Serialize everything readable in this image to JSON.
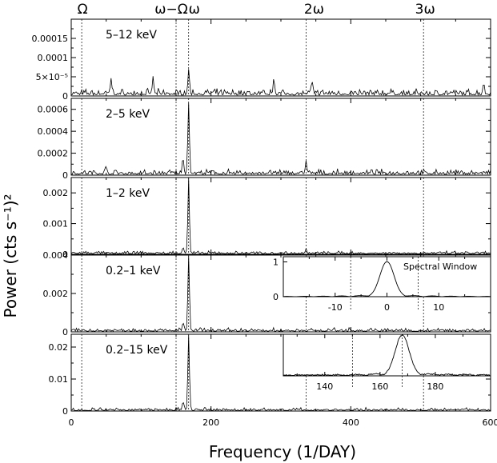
{
  "chart_data": {
    "type": "line",
    "xlabel": "Frequency (1/DAY)",
    "ylabel": "Power (cts s⁻¹)²",
    "xlim": [
      0,
      600
    ],
    "x_ticks": [
      0,
      200,
      400,
      600
    ],
    "harmonic_markers": [
      {
        "label": "Ω",
        "x": 15
      },
      {
        "label": "ω−Ω",
        "x": 150
      },
      {
        "label": "ω",
        "x": 168
      },
      {
        "label": "2ω",
        "x": 336
      },
      {
        "label": "3ω",
        "x": 504
      }
    ],
    "panels": [
      {
        "band": "5–12 keV",
        "ylim": [
          0,
          0.0002
        ],
        "y_ticks": [
          {
            "value": 0,
            "label": "0"
          },
          {
            "value": 5e-05,
            "label": "5×10⁻⁵"
          },
          {
            "value": 0.0001,
            "label": "0.0001"
          },
          {
            "value": 0.00015,
            "label": "0.00015"
          }
        ],
        "peak_frequency": 168,
        "peak_power": 6e-05,
        "noise_level": 7e-06,
        "secondary_peaks": [
          {
            "x": 57,
            "y": 4e-05
          },
          {
            "x": 117,
            "y": 4e-05
          },
          {
            "x": 290,
            "y": 4e-05
          },
          {
            "x": 345,
            "y": 3e-05
          },
          {
            "x": 590,
            "y": 2.5e-05
          }
        ]
      },
      {
        "band": "2–5 keV",
        "ylim": [
          0,
          0.0007
        ],
        "y_ticks": [
          {
            "value": 0,
            "label": "0"
          },
          {
            "value": 0.0002,
            "label": "0.0002"
          },
          {
            "value": 0.0004,
            "label": "0.0004"
          },
          {
            "value": 0.0006,
            "label": "0.0006"
          }
        ],
        "peak_frequency": 168,
        "peak_power": 0.00065,
        "noise_level": 2e-05,
        "secondary_peaks": [
          {
            "x": 336,
            "y": 0.00011
          },
          {
            "x": 160,
            "y": 0.00014
          },
          {
            "x": 50,
            "y": 5e-05
          }
        ]
      },
      {
        "band": "1–2 keV",
        "ylim": [
          0,
          0.0025
        ],
        "y_ticks": [
          {
            "value": 0,
            "label": "0"
          },
          {
            "value": 0.001,
            "label": "0.001"
          },
          {
            "value": 0.002,
            "label": "0.002"
          }
        ],
        "peak_frequency": 168,
        "peak_power": 0.0024,
        "noise_level": 4e-05,
        "secondary_peaks": [
          {
            "x": 336,
            "y": 0.00012
          },
          {
            "x": 160,
            "y": 0.0002
          }
        ]
      },
      {
        "band": "0.2–1 keV",
        "ylim": [
          0,
          0.004
        ],
        "y_ticks": [
          {
            "value": 0,
            "label": "0"
          },
          {
            "value": 0.002,
            "label": "0.002"
          },
          {
            "value": 0.004,
            "label": "0.004"
          }
        ],
        "peak_frequency": 168,
        "peak_power": 0.0039,
        "noise_level": 8e-05,
        "secondary_peaks": [
          {
            "x": 160,
            "y": 0.00045
          }
        ]
      },
      {
        "band": "0.2–15 keV",
        "ylim": [
          0,
          0.024
        ],
        "y_ticks": [
          {
            "value": 0,
            "label": "0"
          },
          {
            "value": 0.01,
            "label": "0.01"
          },
          {
            "value": 0.02,
            "label": "0.02"
          }
        ],
        "peak_frequency": 168,
        "peak_power": 0.0235,
        "noise_level": 0.0004,
        "secondary_peaks": [
          {
            "x": 160,
            "y": 0.0025
          }
        ]
      }
    ],
    "insets": [
      {
        "label": "Spectral Window",
        "xlim": [
          -20,
          20
        ],
        "ylim": [
          0,
          1.15
        ],
        "x_ticks": [
          -10,
          0,
          10
        ],
        "y_ticks": [
          0,
          1
        ],
        "peak_x": 0,
        "peak_y": 1.0,
        "guide_x": [
          -7,
          6
        ]
      },
      {
        "label": "",
        "xlim": [
          125,
          200
        ],
        "ylim": [
          0,
          0.024
        ],
        "x_ticks": [
          140,
          160,
          180
        ],
        "peak_x": 168,
        "peak_y": 0.023,
        "guide_x": [
          150,
          168
        ]
      }
    ]
  }
}
